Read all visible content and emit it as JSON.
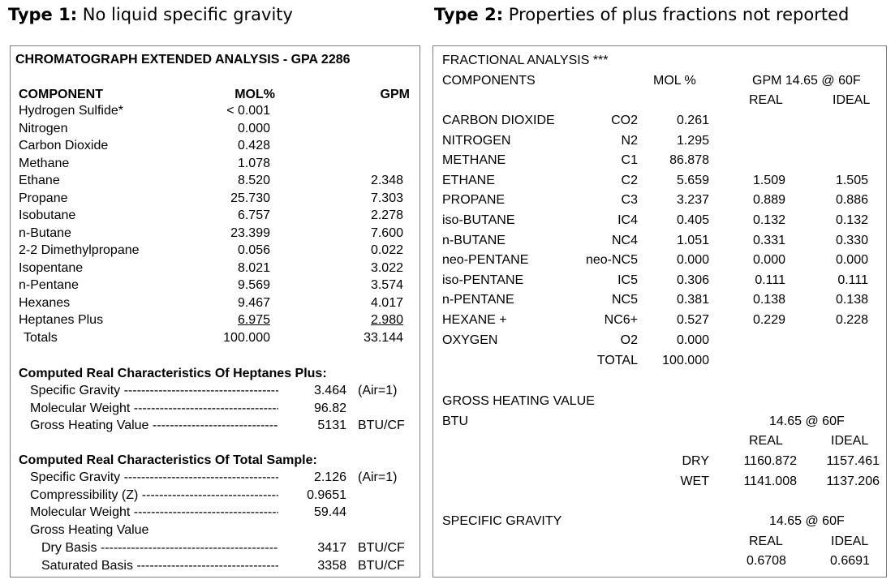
{
  "type1": {
    "heading_bold": "Type 1:",
    "heading_text": " No liquid specific gravity"
  },
  "type2": {
    "heading_bold": "Type 2:",
    "heading_text": " Properties of plus fractions not reported"
  },
  "panel1": {
    "title": "CHROMATOGRAPH EXTENDED ANALYSIS - GPA 2286",
    "headers": {
      "component": "COMPONENT",
      "mol": "MOL%",
      "gpm": "GPM"
    },
    "rows": [
      {
        "name": "Hydrogen Sulfide*",
        "mol": "< 0.001",
        "gpm": ""
      },
      {
        "name": "Nitrogen",
        "mol": "0.000",
        "gpm": ""
      },
      {
        "name": "Carbon Dioxide",
        "mol": "0.428",
        "gpm": ""
      },
      {
        "name": "Methane",
        "mol": "1.078",
        "gpm": ""
      },
      {
        "name": "Ethane",
        "mol": "8.520",
        "gpm": "2.348"
      },
      {
        "name": "Propane",
        "mol": "25.730",
        "gpm": "7.303"
      },
      {
        "name": "Isobutane",
        "mol": "6.757",
        "gpm": "2.278"
      },
      {
        "name": "n-Butane",
        "mol": "23.399",
        "gpm": "7.600"
      },
      {
        "name": "2-2 Dimethylpropane",
        "mol": "0.056",
        "gpm": "0.022"
      },
      {
        "name": "Isopentane",
        "mol": "8.021",
        "gpm": "3.022"
      },
      {
        "name": "n-Pentane",
        "mol": "9.569",
        "gpm": "3.574"
      },
      {
        "name": "Hexanes",
        "mol": "9.467",
        "gpm": "4.017"
      },
      {
        "name": "Heptanes Plus",
        "mol": "6.975",
        "gpm": "2.980"
      }
    ],
    "totals": {
      "name": "Totals",
      "mol": "100.000",
      "gpm": "33.144"
    },
    "heptanes_title": "Computed Real Characteristics Of Heptanes Plus:",
    "heptanes": [
      {
        "label": "Specific Gravity",
        "value": "3.464",
        "unit": "(Air=1)"
      },
      {
        "label": "Molecular Weight",
        "value": "96.82",
        "unit": ""
      },
      {
        "label": "Gross Heating Value",
        "value": "5131",
        "unit": "BTU/CF"
      }
    ],
    "total_title": "Computed Real Characteristics Of Total Sample:",
    "total": [
      {
        "label": "Specific Gravity",
        "value": "2.126",
        "unit": "(Air=1)"
      },
      {
        "label": "Compressibility (Z)",
        "value": "0.9651",
        "unit": ""
      },
      {
        "label": "Molecular Weight",
        "value": "59.44",
        "unit": ""
      }
    ],
    "ghv_label": "Gross Heating Value",
    "ghv": [
      {
        "label": "Dry Basis",
        "value": "3417",
        "unit": "BTU/CF"
      },
      {
        "label": "Saturated Basis",
        "value": "3358",
        "unit": "BTU/CF"
      }
    ]
  },
  "panel2": {
    "title": "FRACTIONAL ANALYSIS ***",
    "headers": {
      "components": "COMPONENTS",
      "mol": "MOL %",
      "gpm": "GPM 14.65 @ 60F",
      "real": "REAL",
      "ideal": "IDEAL"
    },
    "rows": [
      {
        "name": "CARBON DIOXIDE",
        "code": "CO2",
        "mol": "0.261",
        "real": "",
        "ideal": ""
      },
      {
        "name": "NITROGEN",
        "code": "N2",
        "mol": "1.295",
        "real": "",
        "ideal": ""
      },
      {
        "name": "METHANE",
        "code": "C1",
        "mol": "86.878",
        "real": "",
        "ideal": ""
      },
      {
        "name": "ETHANE",
        "code": "C2",
        "mol": "5.659",
        "real": "1.509",
        "ideal": "1.505"
      },
      {
        "name": "PROPANE",
        "code": "C3",
        "mol": "3.237",
        "real": "0.889",
        "ideal": "0.886"
      },
      {
        "name": "iso-BUTANE",
        "code": "IC4",
        "mol": "0.405",
        "real": "0.132",
        "ideal": "0.132"
      },
      {
        "name": "n-BUTANE",
        "code": "NC4",
        "mol": "1.051",
        "real": "0.331",
        "ideal": "0.330"
      },
      {
        "name": "neo-PENTANE",
        "code": "neo-NC5",
        "mol": "0.000",
        "real": "0.000",
        "ideal": "0.000"
      },
      {
        "name": "iso-PENTANE",
        "code": "IC5",
        "mol": "0.306",
        "real": "0.111",
        "ideal": "0.111"
      },
      {
        "name": "n-PENTANE",
        "code": "NC5",
        "mol": "0.381",
        "real": "0.138",
        "ideal": "0.138"
      },
      {
        "name": "HEXANE +",
        "code": "NC6+",
        "mol": "0.527",
        "real": "0.229",
        "ideal": "0.228"
      },
      {
        "name": "OXYGEN",
        "code": "O2",
        "mol": "0.000",
        "real": "",
        "ideal": ""
      }
    ],
    "total": {
      "label": "TOTAL",
      "mol": "100.000"
    },
    "ghv_title": "GROSS HEATING VALUE",
    "btu_label": "BTU",
    "ghv_cond": "14.65 @ 60F",
    "ghv_real": "REAL",
    "ghv_ideal": "IDEAL",
    "ghv_rows": [
      {
        "label": "DRY",
        "real": "1160.872",
        "ideal": "1157.461"
      },
      {
        "label": "WET",
        "real": "1141.008",
        "ideal": "1137.206"
      }
    ],
    "sg_title": "SPECIFIC GRAVITY",
    "sg_cond": "14.65 @ 60F",
    "sg_real_label": "REAL",
    "sg_ideal_label": "IDEAL",
    "sg_real": "0.6708",
    "sg_ideal": "0.6691"
  }
}
